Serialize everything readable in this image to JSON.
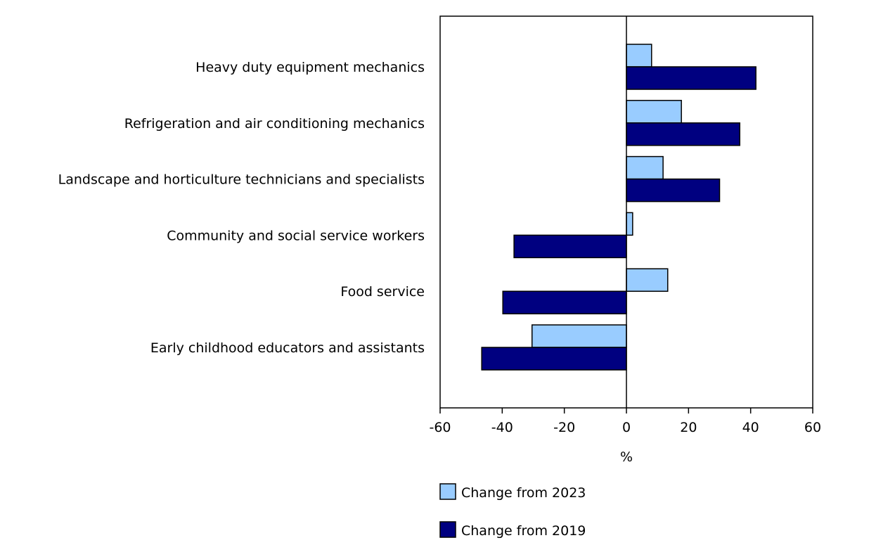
{
  "chart_data": {
    "type": "bar",
    "orientation": "horizontal",
    "categories": [
      "Heavy duty equipment mechanics",
      "Refrigeration and air conditioning mechanics",
      "Landscape and horticulture technicians and specialists",
      "Community and social service workers",
      "Food service",
      "Early childhood educators and assistants"
    ],
    "series": [
      {
        "name": "Change from 2023",
        "color": "#99ccff",
        "values": [
          8.1,
          17.7,
          11.8,
          2.0,
          13.3,
          -30.4
        ]
      },
      {
        "name": "Change from 2019",
        "color": "#000080",
        "values": [
          41.7,
          36.5,
          30.0,
          -36.2,
          -39.8,
          -46.6
        ]
      }
    ],
    "title": "",
    "xlabel": "%",
    "ylabel": "",
    "xlim": [
      -60,
      60
    ],
    "xticks": [
      "-60",
      "-40",
      "-20",
      "0",
      "20",
      "40",
      "60"
    ],
    "grid": false,
    "legend_position": "bottom"
  }
}
